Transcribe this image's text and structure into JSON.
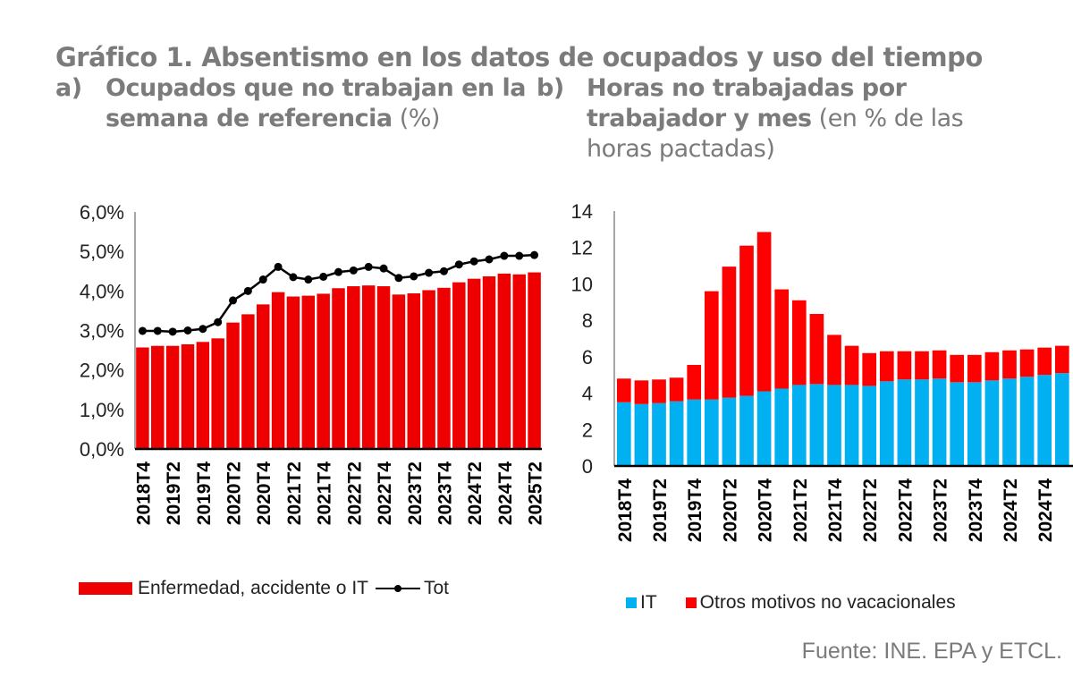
{
  "title": "Gráfico 1. Absentismo en los datos de ocupados y uso del tiempo",
  "panel_a": {
    "label": "a)",
    "title_bold_line1": "Ocupados que no trabajan en la",
    "title_bold_line2": "semana de referencia",
    "title_normal": " (%)"
  },
  "panel_b": {
    "label": "b)",
    "title_bold_line1": "Horas no trabajadas por",
    "title_bold_line2": "trabajador y mes",
    "title_normal_line2": " (en % de las",
    "title_normal_line3": "horas pactadas)"
  },
  "legend_a": {
    "bars": "Enfermedad, accidente o IT",
    "line": "Tot"
  },
  "legend_b": {
    "it": "IT",
    "other": "Otros motivos no vacacionales"
  },
  "source": "Fuente: INE. EPA y ETCL.",
  "colors": {
    "red_a": "#ee0000",
    "red_b": "#ff0000",
    "blue": "#00b0f0",
    "line": "#000000",
    "title": "#7b7b7b"
  },
  "chart_data": [
    {
      "type": "bar+line",
      "title": "Ocupados que no trabajan en la semana de referencia (%)",
      "xlabel": "",
      "ylabel": "",
      "ylim": [
        0,
        6
      ],
      "yticks": [
        "0,0%",
        "1,0%",
        "2,0%",
        "3,0%",
        "4,0%",
        "5,0%",
        "6,0%"
      ],
      "x": [
        "2018T4",
        "2019T1",
        "2019T2",
        "2019T3",
        "2019T4",
        "2020T1",
        "2020T2",
        "2020T3",
        "2020T4",
        "2021T1",
        "2021T2",
        "2021T3",
        "2021T4",
        "2022T1",
        "2022T2",
        "2022T3",
        "2022T4",
        "2023T1",
        "2023T2",
        "2023T3",
        "2023T4",
        "2024T1",
        "2024T2",
        "2024T3",
        "2024T4",
        "2025T1",
        "2025T2"
      ],
      "xtick_labels": [
        "2018T4",
        "2019T2",
        "2019T4",
        "2020T2",
        "2020T4",
        "2021T2",
        "2021T4",
        "2022T2",
        "2022T4",
        "2023T2",
        "2023T4",
        "2024T2",
        "2024T4",
        "2025T2"
      ],
      "series": [
        {
          "name": "Enfermedad, accidente o IT",
          "kind": "bar",
          "values": [
            2.57,
            2.61,
            2.61,
            2.65,
            2.71,
            2.8,
            3.2,
            3.41,
            3.66,
            3.97,
            3.86,
            3.88,
            3.93,
            4.07,
            4.12,
            4.14,
            4.12,
            3.91,
            3.94,
            4.02,
            4.08,
            4.22,
            4.31,
            4.37,
            4.44,
            4.42,
            4.47
          ]
        },
        {
          "name": "Total",
          "kind": "line",
          "values": [
            2.99,
            2.99,
            2.97,
            3.0,
            3.04,
            3.21,
            3.76,
            4.0,
            4.29,
            4.61,
            4.35,
            4.29,
            4.36,
            4.48,
            4.52,
            4.61,
            4.57,
            4.33,
            4.37,
            4.46,
            4.5,
            4.67,
            4.75,
            4.8,
            4.89,
            4.89,
            4.91
          ]
        }
      ],
      "grid": false,
      "legend": "bottom"
    },
    {
      "type": "stacked-bar",
      "title": "Horas no trabajadas por trabajador y mes (en % de las horas pactadas)",
      "xlabel": "",
      "ylabel": "",
      "ylim": [
        0,
        14
      ],
      "yticks": [
        "0",
        "2",
        "4",
        "6",
        "8",
        "10",
        "12",
        "14"
      ],
      "x": [
        "2018T4",
        "2019T1",
        "2019T2",
        "2019T3",
        "2019T4",
        "2020T1",
        "2020T2",
        "2020T3",
        "2020T4",
        "2021T1",
        "2021T2",
        "2021T3",
        "2021T4",
        "2022T1",
        "2022T2",
        "2022T3",
        "2022T4",
        "2023T1",
        "2023T2",
        "2023T3",
        "2023T4",
        "2024T1",
        "2024T2",
        "2024T3",
        "2024T4",
        "2025T1"
      ],
      "xtick_labels": [
        "2018T4",
        "2019T2",
        "2019T4",
        "2020T2",
        "2020T4",
        "2021T2",
        "2021T4",
        "2022T2",
        "2022T4",
        "2023T2",
        "2023T4",
        "2024T2",
        "2024T4"
      ],
      "series": [
        {
          "name": "IT",
          "values": [
            3.5,
            3.4,
            3.45,
            3.55,
            3.65,
            3.65,
            3.75,
            3.85,
            4.1,
            4.25,
            4.45,
            4.5,
            4.45,
            4.45,
            4.4,
            4.65,
            4.75,
            4.75,
            4.8,
            4.6,
            4.6,
            4.7,
            4.8,
            4.9,
            5.0,
            5.1
          ]
        },
        {
          "name": "Otros motivos no vacacionales",
          "values": [
            1.3,
            1.3,
            1.3,
            1.3,
            1.9,
            5.95,
            7.2,
            8.25,
            8.75,
            5.45,
            4.65,
            3.85,
            2.75,
            2.15,
            1.8,
            1.65,
            1.55,
            1.55,
            1.55,
            1.5,
            1.5,
            1.55,
            1.55,
            1.5,
            1.5,
            1.5
          ]
        }
      ],
      "grid": false,
      "legend": "bottom"
    }
  ]
}
